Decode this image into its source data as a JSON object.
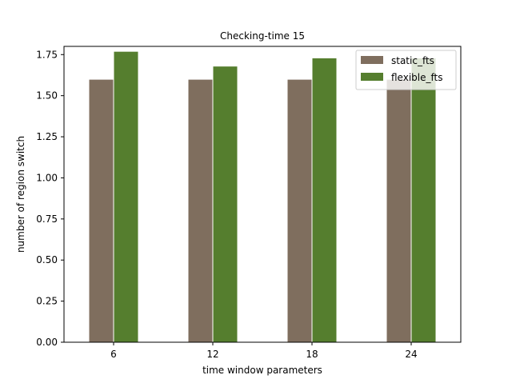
{
  "chart_data": {
    "type": "bar",
    "title": "Checking-time 15",
    "xlabel": "time window parameters",
    "ylabel": "number of region switch",
    "categories": [
      "6",
      "12",
      "18",
      "24"
    ],
    "series": [
      {
        "name": "static_fts",
        "color": "#7f6e5e",
        "values": [
          1.6,
          1.6,
          1.6,
          1.6
        ]
      },
      {
        "name": "flexible_fts",
        "color": "#557e2e",
        "values": [
          1.77,
          1.68,
          1.73,
          1.73
        ]
      }
    ],
    "ylim": [
      0,
      1.8
    ],
    "yticks": [
      "0.00",
      "0.25",
      "0.50",
      "0.75",
      "1.00",
      "1.25",
      "1.50",
      "1.75"
    ],
    "grid": false,
    "legend_position": "top-right"
  }
}
